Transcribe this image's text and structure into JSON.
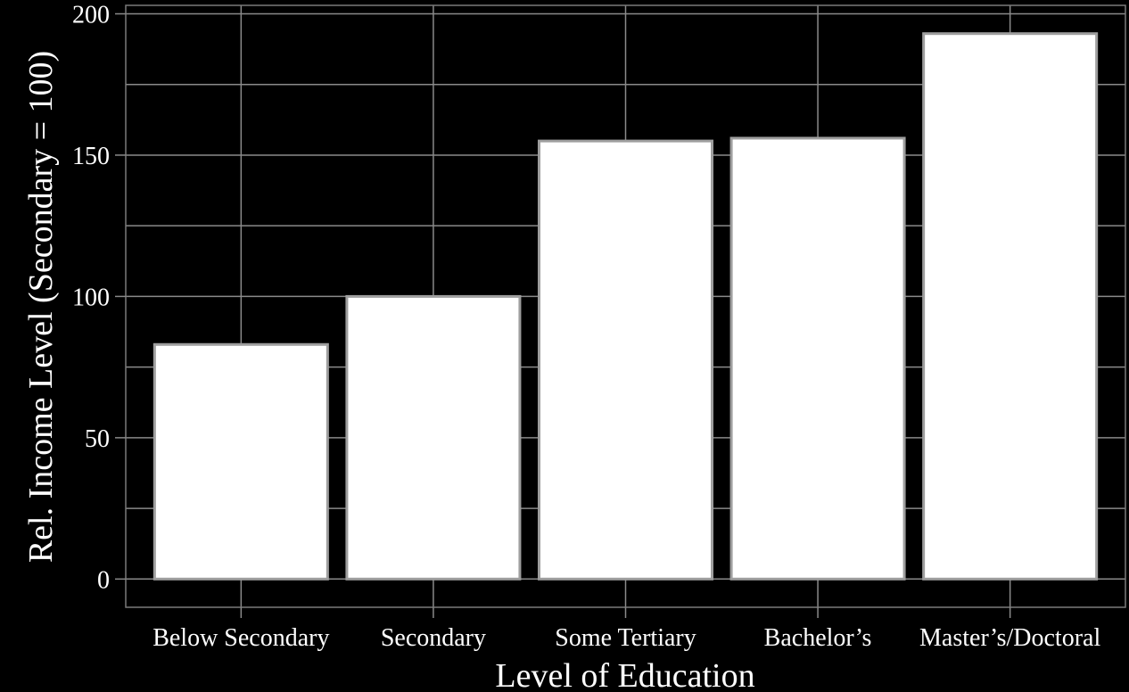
{
  "chart_data": {
    "type": "bar",
    "categories": [
      "Below Secondary",
      "Secondary",
      "Some Tertiary",
      "Bachelor’s",
      "Master’s/Doctoral"
    ],
    "values": [
      83,
      100,
      155,
      156,
      193
    ],
    "title": "",
    "xlabel": "Level of Education",
    "ylabel": "Rel. Income Level (Secondary = 100)",
    "ylim": [
      -10,
      203
    ],
    "yticks": [
      0,
      50,
      100,
      150,
      200
    ],
    "grid": true,
    "legend": "none",
    "colors": {
      "background": "#000000",
      "bar_fill": "#ffffff",
      "bar_stroke": "#9e9e9e",
      "grid": "#8a8a8a",
      "text": "#ffffff"
    }
  }
}
